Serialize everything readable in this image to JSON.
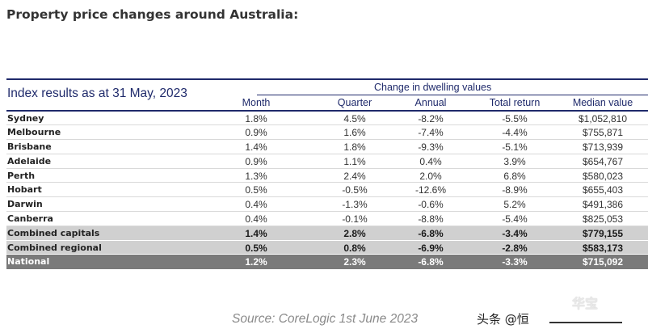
{
  "heading": "Property price changes around Australia:",
  "table": {
    "title": "Index results as at 31  May, 2023",
    "group_header": "Change in dwelling values",
    "columns": [
      "Month",
      "Quarter",
      "Annual",
      "Total return",
      "Median value"
    ],
    "rows": [
      {
        "name": "Sydney",
        "month": "1.8%",
        "quarter": "4.5%",
        "annual": "-8.2%",
        "total": "-5.5%",
        "median": "$1,052,810"
      },
      {
        "name": "Melbourne",
        "month": "0.9%",
        "quarter": "1.6%",
        "annual": "-7.4%",
        "total": "-4.4%",
        "median": "$755,871"
      },
      {
        "name": "Brisbane",
        "month": "1.4%",
        "quarter": "1.8%",
        "annual": "-9.3%",
        "total": "-5.1%",
        "median": "$713,939"
      },
      {
        "name": "Adelaide",
        "month": "0.9%",
        "quarter": "1.1%",
        "annual": "0.4%",
        "total": "3.9%",
        "median": "$654,767"
      },
      {
        "name": "Perth",
        "month": "1.3%",
        "quarter": "2.4%",
        "annual": "2.0%",
        "total": "6.8%",
        "median": "$580,023"
      },
      {
        "name": "Hobart",
        "month": "0.5%",
        "quarter": "-0.5%",
        "annual": "-12.6%",
        "total": "-8.9%",
        "median": "$655,403"
      },
      {
        "name": "Darwin",
        "month": "0.4%",
        "quarter": "-1.3%",
        "annual": "-0.6%",
        "total": "5.2%",
        "median": "$491,386"
      },
      {
        "name": "Canberra",
        "month": "0.4%",
        "quarter": "-0.1%",
        "annual": "-8.8%",
        "total": "-5.4%",
        "median": "$825,053"
      },
      {
        "name": "Combined capitals",
        "month": "1.4%",
        "quarter": "2.8%",
        "annual": "-6.8%",
        "total": "-3.4%",
        "median": "$779,155"
      },
      {
        "name": "Combined regional",
        "month": "0.5%",
        "quarter": "0.8%",
        "annual": "-6.9%",
        "total": "-2.8%",
        "median": "$583,173"
      },
      {
        "name": "National",
        "month": "1.2%",
        "quarter": "2.3%",
        "annual": "-6.8%",
        "total": "-3.3%",
        "median": "$715,092"
      }
    ]
  },
  "source": "Source: CoreLogic 1st June 2023",
  "watermark": "头条 @恒",
  "colors": {
    "navy": "#1f2a6b",
    "summary_row": "#d0d0d0",
    "national_row": "#7a7a7a"
  }
}
